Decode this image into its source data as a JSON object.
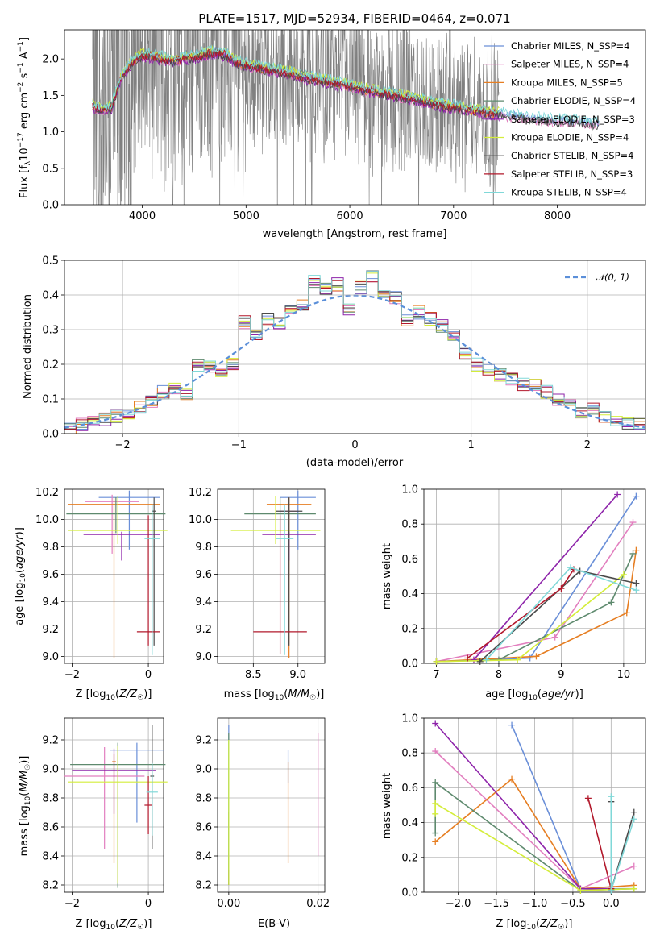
{
  "chart_data": [
    {
      "id": "spectrum",
      "type": "line",
      "title": "PLATE=1517, MJD=52934, FIBERID=0464, z=0.071",
      "xlabel": "wavelength [Angstrom, rest frame]",
      "ylabel": "Flux [f_λ 10^-17 erg cm^-2 s^-1 A^-1]",
      "xlim": [
        3250,
        8850
      ],
      "ylim": [
        0,
        2.4
      ],
      "xticks": [
        "4000",
        "5000",
        "6000",
        "7000",
        "8000"
      ],
      "yticks": [
        "0.0",
        "0.5",
        "1.0",
        "1.5",
        "2.0"
      ],
      "data_color": "#808080",
      "legend_position": "upper right",
      "legend": [
        {
          "label": "Chabrier MILES, N_SSP=4",
          "color": "#6a8fd8"
        },
        {
          "label": "Salpeter MILES, N_SSP=4",
          "color": "#e27fbf"
        },
        {
          "label": "Kroupa MILES, N_SSP=5",
          "color": "#e67e22"
        },
        {
          "label": "Chabrier ELODIE, N_SSP=4",
          "color": "#5e8a6e"
        },
        {
          "label": "Salpeter ELODIE, N_SSP=3",
          "color": "#8e24aa"
        },
        {
          "label": "Kroupa ELODIE, N_SSP=4",
          "color": "#d4ed3a"
        },
        {
          "label": "Chabrier STELIB, N_SSP=4",
          "color": "#4a4a4a"
        },
        {
          "label": "Salpeter STELIB, N_SSP=3",
          "color": "#b2182b"
        },
        {
          "label": "Kroupa STELIB, N_SSP=4",
          "color": "#80d8d8"
        }
      ],
      "model_continuum": {
        "x": [
          3520,
          3600,
          3700,
          3800,
          3900,
          4000,
          4100,
          4200,
          4300,
          4400,
          4500,
          4600,
          4700,
          4800,
          4900,
          5000,
          5200,
          5400,
          5600,
          5800,
          6000,
          6200,
          6400,
          6600,
          6800,
          7000,
          7200,
          7400,
          7600,
          7800,
          8000,
          8200,
          8400
        ],
        "y": [
          1.35,
          1.28,
          1.32,
          1.75,
          1.95,
          2.05,
          2.02,
          2.0,
          1.95,
          2.0,
          2.02,
          2.05,
          2.08,
          2.05,
          1.95,
          1.9,
          1.85,
          1.8,
          1.72,
          1.68,
          1.62,
          1.55,
          1.5,
          1.45,
          1.38,
          1.33,
          1.28,
          1.24,
          1.2,
          1.16,
          1.14,
          1.12,
          1.1
        ]
      }
    },
    {
      "id": "residuals",
      "type": "step",
      "xlabel": "(data-model)/error",
      "ylabel": "Normed distribution",
      "xlim": [
        -2.5,
        2.5
      ],
      "ylim": [
        0,
        0.5
      ],
      "xticks": [
        "−2",
        "−1",
        "0",
        "1",
        "2"
      ],
      "yticks": [
        "0.0",
        "0.1",
        "0.2",
        "0.3",
        "0.4",
        "0.5"
      ],
      "legend": [
        {
          "label": "𝒩(0, 1)",
          "color": "#5b8fd9",
          "style": "dashed"
        }
      ],
      "bin_width": 0.1,
      "hist_centers": [
        -2.45,
        -2.35,
        -2.25,
        -2.15,
        -2.05,
        -1.95,
        -1.85,
        -1.75,
        -1.65,
        -1.55,
        -1.45,
        -1.35,
        -1.25,
        -1.15,
        -1.05,
        -0.95,
        -0.85,
        -0.75,
        -0.65,
        -0.55,
        -0.45,
        -0.35,
        -0.25,
        -0.15,
        -0.05,
        0.05,
        0.15,
        0.25,
        0.35,
        0.45,
        0.55,
        0.65,
        0.75,
        0.85,
        0.95,
        1.05,
        1.15,
        1.25,
        1.35,
        1.45,
        1.55,
        1.65,
        1.75,
        1.85,
        1.95,
        2.05,
        2.15,
        2.25,
        2.35,
        2.45
      ],
      "hist_base": [
        0.015,
        0.025,
        0.035,
        0.04,
        0.05,
        0.06,
        0.075,
        0.09,
        0.12,
        0.13,
        0.11,
        0.2,
        0.19,
        0.17,
        0.2,
        0.32,
        0.29,
        0.33,
        0.32,
        0.35,
        0.37,
        0.44,
        0.42,
        0.43,
        0.36,
        0.42,
        0.45,
        0.41,
        0.39,
        0.33,
        0.35,
        0.33,
        0.31,
        0.28,
        0.23,
        0.2,
        0.18,
        0.17,
        0.16,
        0.14,
        0.14,
        0.12,
        0.1,
        0.08,
        0.06,
        0.07,
        0.05,
        0.04,
        0.03,
        0.025
      ]
    },
    {
      "id": "age-vs-Z",
      "type": "errorbar",
      "xlabel": "Z [log10(Z/Z☉)]",
      "ylabel": "age  [log10(age/yr)]",
      "xlim": [
        -2.2,
        0.4
      ],
      "ylim": [
        8.95,
        10.22
      ],
      "xticks": [
        "−2",
        "0"
      ],
      "yticks": [
        "9.0",
        "9.2",
        "9.4",
        "9.6",
        "9.8",
        "10.0",
        "10.2"
      ],
      "points": [
        {
          "x": -0.5,
          "y": 10.16,
          "xerr": 0.8,
          "yerr": [
            0.38,
            0.05
          ],
          "color": "#6a8fd8"
        },
        {
          "x": -0.95,
          "y": 10.13,
          "xerr": 0.7,
          "yerr": [
            0.38,
            0.05
          ],
          "color": "#e27fbf"
        },
        {
          "x": -0.9,
          "y": 10.11,
          "xerr": 1.2,
          "yerr": [
            1.12,
            0.05
          ],
          "color": "#e67e22"
        },
        {
          "x": -0.85,
          "y": 10.04,
          "xerr": 1.3,
          "yerr": [
            0.14,
            0.12
          ],
          "color": "#5e8a6e"
        },
        {
          "x": -0.7,
          "y": 9.89,
          "xerr": 1.0,
          "yerr": [
            0.19,
            0.02
          ],
          "color": "#8e24aa"
        },
        {
          "x": -0.8,
          "y": 9.92,
          "xerr": 1.3,
          "yerr": [
            0.1,
            0.25
          ],
          "color": "#d4ed3a"
        },
        {
          "x": 0.15,
          "y": 10.06,
          "xerr": 0.05,
          "yerr": [
            0.98,
            0.1
          ],
          "color": "#4a4a4a"
        },
        {
          "x": 0.0,
          "y": 9.18,
          "xerr": 0.3,
          "yerr": [
            0.1,
            0.85
          ],
          "color": "#b2182b"
        },
        {
          "x": 0.1,
          "y": 9.86,
          "xerr": 0.2,
          "yerr": [
            0.85,
            0.25
          ],
          "color": "#80d8d8"
        }
      ]
    },
    {
      "id": "age-vs-mass",
      "type": "errorbar",
      "xlabel": "mass [log10(M/M☉)]",
      "ylabel": "",
      "xlim": [
        8.1,
        9.3
      ],
      "ylim": [
        8.95,
        10.22
      ],
      "xticks": [
        "8.5",
        "9.0"
      ],
      "yticks": [
        "9.0",
        "9.2",
        "9.4",
        "9.6",
        "9.8",
        "10.0",
        "10.2"
      ],
      "points": [
        {
          "x": 9.0,
          "y": 10.16,
          "xerr": 0.2,
          "yerr": [
            0.38,
            0.05
          ],
          "color": "#6a8fd8"
        },
        {
          "x": 8.9,
          "y": 10.06,
          "xerr": 0.1,
          "yerr": [
            0.28,
            0.05
          ],
          "color": "#e27fbf"
        },
        {
          "x": 8.9,
          "y": 10.11,
          "xerr": 0.25,
          "yerr": [
            1.12,
            0.05
          ],
          "color": "#e67e22"
        },
        {
          "x": 8.8,
          "y": 10.04,
          "xerr": 0.4,
          "yerr": [
            0.14,
            0.12
          ],
          "color": "#5e8a6e"
        },
        {
          "x": 8.9,
          "y": 9.89,
          "xerr": 0.3,
          "yerr": [
            0.19,
            0.02
          ],
          "color": "#8e24aa"
        },
        {
          "x": 8.75,
          "y": 9.92,
          "xerr": 0.5,
          "yerr": [
            0.1,
            0.25
          ],
          "color": "#d4ed3a"
        },
        {
          "x": 8.9,
          "y": 10.06,
          "xerr": 0.15,
          "yerr": [
            0.98,
            0.1
          ],
          "color": "#4a4a4a"
        },
        {
          "x": 8.8,
          "y": 9.18,
          "xerr": 0.3,
          "yerr": [
            0.16,
            0.85
          ],
          "color": "#b2182b"
        },
        {
          "x": 8.85,
          "y": 9.86,
          "xerr": 0.1,
          "yerr": [
            0.85,
            0.25
          ],
          "color": "#80d8d8"
        }
      ]
    },
    {
      "id": "weight-vs-age",
      "type": "line",
      "xlabel": "age  [log10(age/yr)]",
      "ylabel": "mass weight",
      "xlim": [
        6.8,
        10.35
      ],
      "ylim": [
        0,
        1.0
      ],
      "xticks": [
        "7",
        "8",
        "9",
        "10"
      ],
      "yticks": [
        "0.0",
        "0.2",
        "0.4",
        "0.6",
        "0.8",
        "1.0"
      ],
      "series": [
        {
          "color": "#6a8fd8",
          "x": [
            7.0,
            8.5,
            10.2
          ],
          "y": [
            0.01,
            0.03,
            0.96
          ]
        },
        {
          "color": "#e27fbf",
          "x": [
            7.0,
            8.9,
            10.15
          ],
          "y": [
            0.01,
            0.15,
            0.81
          ]
        },
        {
          "color": "#e67e22",
          "x": [
            7.0,
            8.6,
            10.05,
            10.2
          ],
          "y": [
            0.01,
            0.04,
            0.29,
            0.65
          ]
        },
        {
          "color": "#5e8a6e",
          "x": [
            7.0,
            8.0,
            9.8,
            10.15
          ],
          "y": [
            0.01,
            0.02,
            0.35,
            0.63
          ]
        },
        {
          "color": "#8e24aa",
          "x": [
            7.6,
            9.9
          ],
          "y": [
            0.02,
            0.97
          ]
        },
        {
          "color": "#d4ed3a",
          "x": [
            7.0,
            8.3,
            10.0
          ],
          "y": [
            0.01,
            0.02,
            0.51
          ]
        },
        {
          "color": "#4a4a4a",
          "x": [
            7.7,
            9.3,
            10.2
          ],
          "y": [
            0.01,
            0.53,
            0.46
          ]
        },
        {
          "color": "#b2182b",
          "x": [
            7.5,
            9.0,
            9.2
          ],
          "y": [
            0.03,
            0.43,
            0.54
          ]
        },
        {
          "color": "#80d8d8",
          "x": [
            7.8,
            9.15,
            10.2
          ],
          "y": [
            0.02,
            0.55,
            0.42
          ]
        }
      ]
    },
    {
      "id": "mass-vs-Z",
      "type": "errorbar",
      "xlabel": "Z [log10(Z/Z☉)]",
      "ylabel": "mass [log10(M/M☉)]",
      "xlim": [
        -2.2,
        0.4
      ],
      "ylim": [
        8.15,
        9.35
      ],
      "xticks": [
        "−2",
        "0"
      ],
      "yticks": [
        "8.2",
        "8.4",
        "8.6",
        "8.8",
        "9.0",
        "9.2"
      ],
      "points": [
        {
          "x": -0.3,
          "y": 9.13,
          "xerr": 0.7,
          "yerr": [
            0.5,
            0.05
          ],
          "color": "#6a8fd8"
        },
        {
          "x": -1.15,
          "y": 8.95,
          "xerr": 1.05,
          "yerr": [
            0.5,
            0.2
          ],
          "color": "#e27fbf"
        },
        {
          "x": -0.9,
          "y": 9.05,
          "xerr": 0.05,
          "yerr": [
            0.7,
            0.05
          ],
          "color": "#e67e22"
        },
        {
          "x": -0.8,
          "y": 9.03,
          "xerr": 1.25,
          "yerr": [
            0.85,
            0.15
          ],
          "color": "#5e8a6e"
        },
        {
          "x": -0.9,
          "y": 8.99,
          "xerr": 1.1,
          "yerr": [
            0.3,
            0.15
          ],
          "color": "#8e24aa"
        },
        {
          "x": -0.8,
          "y": 8.91,
          "xerr": 1.3,
          "yerr": [
            0.7,
            0.25
          ],
          "color": "#d4ed3a"
        },
        {
          "x": 0.1,
          "y": 8.95,
          "xerr": 0.05,
          "yerr": [
            0.5,
            0.35
          ],
          "color": "#4a4a4a"
        },
        {
          "x": 0.0,
          "y": 8.75,
          "xerr": 0.1,
          "yerr": [
            0.2,
            0.2
          ],
          "color": "#b2182b"
        },
        {
          "x": 0.1,
          "y": 8.84,
          "xerr": 0.15,
          "yerr": [
            0.3,
            0.2
          ],
          "color": "#80d8d8"
        }
      ]
    },
    {
      "id": "mass-vs-ebv",
      "type": "errorbar",
      "xlabel": "E(B-V)",
      "ylabel": "",
      "xlim": [
        -0.0025,
        0.0215
      ],
      "ylim": [
        8.15,
        9.35
      ],
      "xticks": [
        "0.00",
        "0.02"
      ],
      "yticks": [
        "8.2",
        "8.4",
        "8.6",
        "8.8",
        "9.0",
        "9.2"
      ],
      "points": [
        {
          "x": 0.0,
          "y": 9.0,
          "xerr": 0.0,
          "yerr": [
            0.8,
            0.3
          ],
          "color": "#6a8fd8"
        },
        {
          "x": 0.0133,
          "y": 9.0,
          "xerr": 0.0,
          "yerr": [
            0.1,
            0.13
          ],
          "color": "#6a8fd8"
        },
        {
          "x": 0.0133,
          "y": 8.7,
          "xerr": 0.0,
          "yerr": [
            0.35,
            0.35
          ],
          "color": "#e67e22"
        },
        {
          "x": 0.02,
          "y": 8.9,
          "xerr": 0.0,
          "yerr": [
            0.5,
            0.35
          ],
          "color": "#e27fbf"
        },
        {
          "x": 0.0,
          "y": 8.8,
          "xerr": 0.0,
          "yerr": [
            0.5,
            0.45
          ],
          "color": "#5e8a6e"
        },
        {
          "x": 0.0,
          "y": 8.5,
          "xerr": 0.0,
          "yerr": [
            0.3,
            0.2
          ],
          "color": "#4a4a4a"
        },
        {
          "x": 0.0,
          "y": 8.9,
          "xerr": 0.0,
          "yerr": [
            0.6,
            0.3
          ],
          "color": "#80d8d8"
        },
        {
          "x": 0.0,
          "y": 8.6,
          "xerr": 0.0,
          "yerr": [
            0.4,
            0.6
          ],
          "color": "#d4ed3a"
        }
      ]
    },
    {
      "id": "weight-vs-Z",
      "type": "line",
      "xlabel": "Z [log10(Z/Z☉)]",
      "ylabel": "mass weight",
      "xlim": [
        -2.45,
        0.45
      ],
      "ylim": [
        0,
        1.0
      ],
      "xticks": [
        "−2.0",
        "−1.5",
        "−1.0",
        "−0.5",
        "0.0"
      ],
      "yticks": [
        "0.0",
        "0.2",
        "0.4",
        "0.6",
        "0.8",
        "1.0"
      ],
      "series": [
        {
          "color": "#6a8fd8",
          "x": [
            -1.3,
            -0.4,
            0.3
          ],
          "y": [
            0.96,
            0.02,
            0.02
          ]
        },
        {
          "color": "#e27fbf",
          "x": [
            -2.3,
            -0.4,
            0.3
          ],
          "y": [
            0.81,
            0.02,
            0.15
          ]
        },
        {
          "color": "#e67e22",
          "x": [
            -2.3,
            -1.3,
            -0.4,
            0.3
          ],
          "y": [
            0.29,
            0.65,
            0.02,
            0.04
          ]
        },
        {
          "color": "#5e8a6e",
          "x": [
            -2.3,
            -2.3,
            -0.4,
            0.3
          ],
          "y": [
            0.34,
            0.63,
            0.01,
            0.02
          ]
        },
        {
          "color": "#8e24aa",
          "x": [
            -2.3,
            -0.4,
            0.0
          ],
          "y": [
            0.97,
            0.02,
            0.02
          ]
        },
        {
          "color": "#d4ed3a",
          "x": [
            -2.3,
            -2.3,
            -0.4,
            0.3
          ],
          "y": [
            0.45,
            0.51,
            0.01,
            0.02
          ]
        },
        {
          "color": "#4a4a4a",
          "x": [
            0.0,
            0.0,
            0.3
          ],
          "y": [
            0.52,
            0.01,
            0.46
          ]
        },
        {
          "color": "#b2182b",
          "x": [
            -0.3,
            0.0,
            0.0
          ],
          "y": [
            0.54,
            0.02,
            0.03
          ]
        },
        {
          "color": "#80d8d8",
          "x": [
            0.0,
            0.0,
            0.3
          ],
          "y": [
            0.55,
            0.01,
            0.42
          ]
        }
      ]
    }
  ]
}
